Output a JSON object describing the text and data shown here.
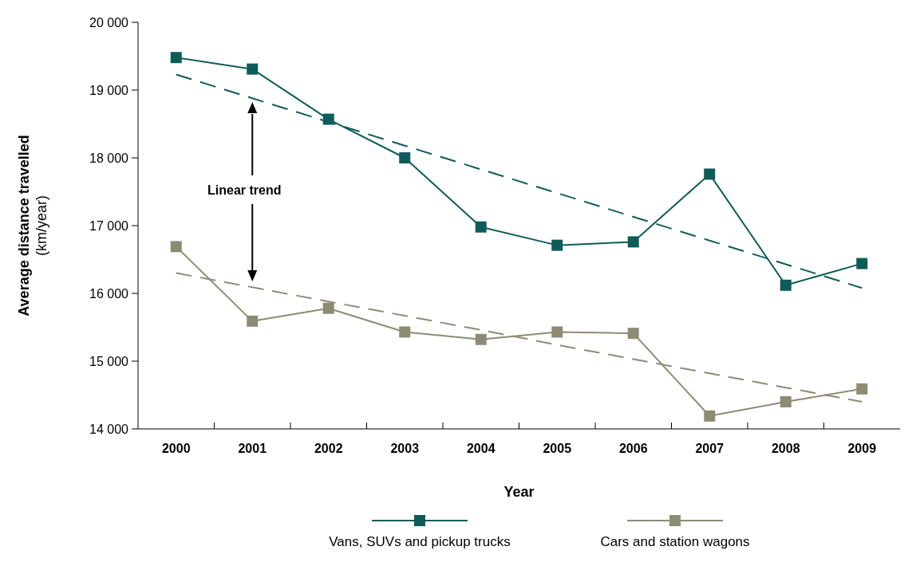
{
  "chart_data": {
    "type": "line",
    "xlabel": "Year",
    "ylabel": "Average distance travelled\n(km/year)",
    "categories": [
      "2000",
      "2001",
      "2002",
      "2003",
      "2004",
      "2005",
      "2006",
      "2007",
      "2008",
      "2009"
    ],
    "ylim": [
      14000,
      20000
    ],
    "yticks": [
      {
        "value": 14000,
        "label": "14 000"
      },
      {
        "value": 15000,
        "label": "15 000"
      },
      {
        "value": 16000,
        "label": "16 000"
      },
      {
        "value": 17000,
        "label": "17 000"
      },
      {
        "value": 18000,
        "label": "18 000"
      },
      {
        "value": 19000,
        "label": "19 000"
      },
      {
        "value": 20000,
        "label": "20 000"
      }
    ],
    "grid": false,
    "legend": "bottom",
    "marker": "square",
    "series": [
      {
        "name": "Vans, SUVs and pickup trucks",
        "color": "#0e5c5a",
        "values": [
          19480,
          19310,
          18570,
          18000,
          16980,
          16710,
          16760,
          17760,
          16120,
          16440
        ]
      },
      {
        "name": "Cars and station wagons",
        "color": "#8c8c74",
        "values": [
          16690,
          15590,
          15780,
          15430,
          15320,
          15430,
          15410,
          14190,
          14400,
          14590
        ]
      },
      {
        "type": "line",
        "color": "#0e5c5a",
        "values": [
          19230,
          18880,
          18530,
          18180,
          17830,
          17480,
          17130,
          16780,
          16430,
          16080
        ],
        "line_style": "dashed",
        "marker": "none"
      },
      {
        "type": "line",
        "color": "#8c8c74",
        "values": [
          16300,
          16090,
          15880,
          15670,
          15460,
          15240,
          15030,
          14820,
          14610,
          14400
        ],
        "line_style": "dashed",
        "marker": "none"
      }
    ],
    "annotations": [
      "Linear trend"
    ]
  }
}
